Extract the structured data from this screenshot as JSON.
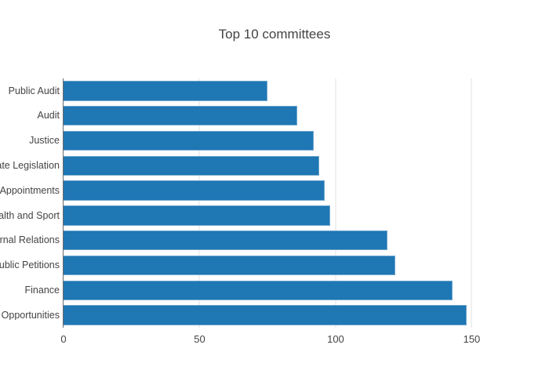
{
  "colors": {
    "background": "#ffffff",
    "bar_fill": "#1f77b4",
    "bar_edge": "#6ea6cd",
    "text": "#444444",
    "gridline": "#f0f0f0",
    "axis_line": "#6b6b6b"
  },
  "chart_data": {
    "type": "bar",
    "orientation": "horizontal",
    "title": "Top 10 committees",
    "xlabel": "",
    "ylabel": "",
    "legend": "none",
    "grid": "vertical",
    "categories": [
      "Public Audit",
      "Audit",
      "Justice",
      "ate Legislation",
      "Appointments",
      "alth and Sport",
      "rnal Relations",
      "ublic Petitions",
      "Finance",
      "Opportunities"
    ],
    "values": [
      75,
      86,
      92,
      94,
      96,
      98,
      119,
      122,
      143,
      148
    ],
    "xticks": [
      "0",
      "50",
      "100",
      "150"
    ],
    "xtick_values": [
      0,
      50,
      100,
      150
    ],
    "xlim": [
      0,
      161.4
    ]
  }
}
